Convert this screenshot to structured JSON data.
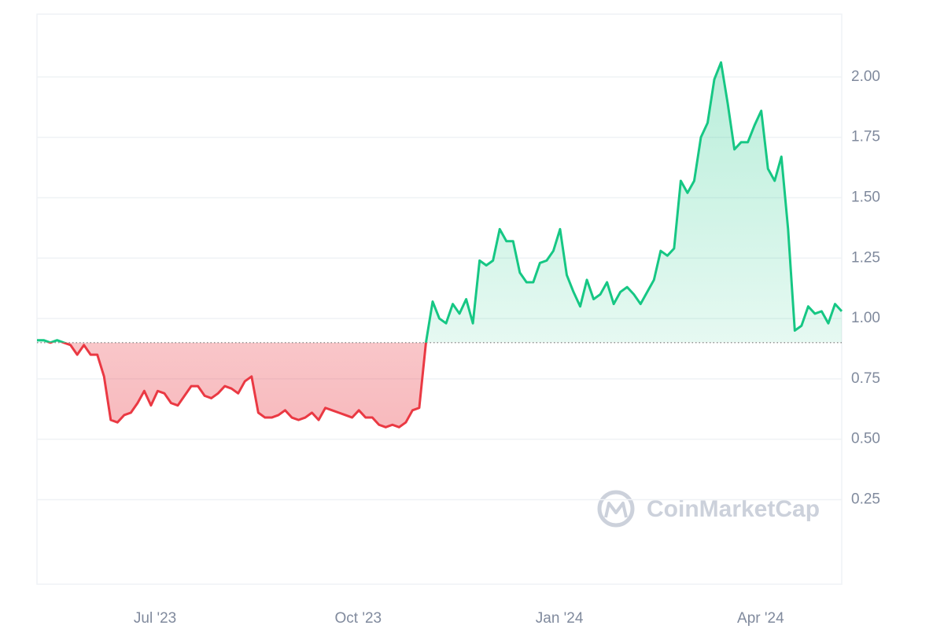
{
  "chart_data": {
    "type": "baseline-area",
    "baseline": 0.9,
    "up_color": "#16c784",
    "down_color": "#ea3943",
    "grid": true,
    "watermark": "CoinMarketCap",
    "ylim": [
      -0.1,
      2.26
    ],
    "yticks": [
      {
        "value": 0.25,
        "label": "0.25"
      },
      {
        "value": 0.5,
        "label": "0.50"
      },
      {
        "value": 0.75,
        "label": "0.75"
      },
      {
        "value": 1,
        "label": "1.00"
      },
      {
        "value": 1.25,
        "label": "1.25"
      },
      {
        "value": 1.5,
        "label": "1.50"
      },
      {
        "value": 1.75,
        "label": "1.75"
      },
      {
        "value": 2,
        "label": "2.00"
      }
    ],
    "xlim": [
      0,
      120
    ],
    "xticks": [
      {
        "value": 17.6,
        "label": "Jul '23"
      },
      {
        "value": 47.9,
        "label": "Oct '23"
      },
      {
        "value": 77.9,
        "label": "Jan '24"
      },
      {
        "value": 107.9,
        "label": "Apr '24"
      }
    ],
    "values": [
      0.91,
      0.91,
      0.9,
      0.91,
      0.9,
      0.89,
      0.85,
      0.89,
      0.85,
      0.85,
      0.76,
      0.58,
      0.57,
      0.6,
      0.61,
      0.65,
      0.7,
      0.64,
      0.7,
      0.69,
      0.65,
      0.64,
      0.68,
      0.72,
      0.72,
      0.68,
      0.67,
      0.69,
      0.72,
      0.71,
      0.69,
      0.74,
      0.76,
      0.61,
      0.59,
      0.59,
      0.6,
      0.62,
      0.59,
      0.58,
      0.59,
      0.61,
      0.58,
      0.63,
      0.62,
      0.61,
      0.6,
      0.59,
      0.62,
      0.59,
      0.59,
      0.56,
      0.55,
      0.56,
      0.55,
      0.57,
      0.62,
      0.63,
      0.9,
      1.07,
      1.0,
      0.98,
      1.06,
      1.02,
      1.08,
      0.98,
      1.24,
      1.22,
      1.24,
      1.37,
      1.32,
      1.32,
      1.19,
      1.15,
      1.15,
      1.23,
      1.24,
      1.28,
      1.37,
      1.18,
      1.11,
      1.05,
      1.16,
      1.08,
      1.1,
      1.15,
      1.06,
      1.11,
      1.13,
      1.1,
      1.06,
      1.11,
      1.16,
      1.28,
      1.26,
      1.29,
      1.57,
      1.52,
      1.57,
      1.75,
      1.81,
      1.99,
      2.06,
      1.89,
      1.7,
      1.73,
      1.73,
      1.8,
      1.86,
      1.62,
      1.57,
      1.67,
      1.37,
      0.95,
      0.97,
      1.05,
      1.02,
      1.03,
      0.98,
      1.06,
      1.03
    ]
  }
}
